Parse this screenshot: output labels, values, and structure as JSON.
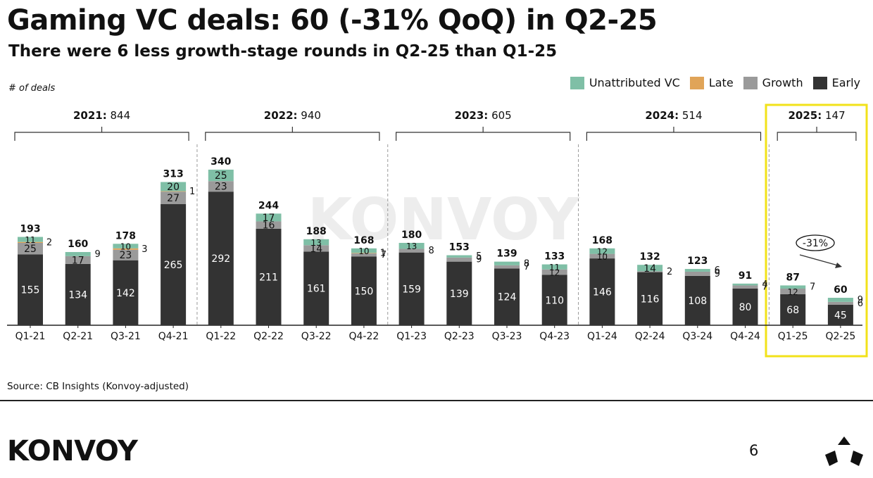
{
  "title": "Gaming VC deals: 60 (-31% QoQ) in Q2-25",
  "subtitle": "There were 6 less growth-stage rounds in Q2-25 than Q1-25",
  "y_unit_label": "# of deals",
  "source": "Source: CB Insights (Konvoy-adjusted)",
  "brand": "KONVOY",
  "watermark": "KONVOY",
  "page_number": "6",
  "colors": {
    "Early": "#333333",
    "Growth": "#9a9a9a",
    "Late": "#e0a458",
    "Unattributed VC": "#7fbfa6",
    "highlight": "#f2e21a"
  },
  "legend": [
    "Unattributed VC",
    "Late",
    "Growth",
    "Early"
  ],
  "chart_data": {
    "type": "bar",
    "stacked": true,
    "categories": [
      "Q1-21",
      "Q2-21",
      "Q3-21",
      "Q4-21",
      "Q1-22",
      "Q2-22",
      "Q3-22",
      "Q4-22",
      "Q1-23",
      "Q2-23",
      "Q3-23",
      "Q4-23",
      "Q1-24",
      "Q2-24",
      "Q3-24",
      "Q4-24",
      "Q1-25",
      "Q2-25"
    ],
    "series": [
      {
        "name": "Early",
        "values": [
          155,
          134,
          142,
          265,
          292,
          211,
          161,
          150,
          159,
          139,
          124,
          110,
          146,
          116,
          108,
          80,
          68,
          45
        ]
      },
      {
        "name": "Growth",
        "values": [
          25,
          17,
          23,
          27,
          23,
          16,
          14,
          7,
          8,
          9,
          7,
          12,
          10,
          2,
          9,
          7,
          12,
          6
        ]
      },
      {
        "name": "Late",
        "values": [
          2,
          0,
          3,
          1,
          0,
          0,
          0,
          1,
          0,
          0,
          0,
          0,
          0,
          0,
          0,
          0,
          0,
          0
        ]
      },
      {
        "name": "Unattributed VC",
        "values": [
          11,
          9,
          10,
          20,
          25,
          17,
          13,
          10,
          13,
          5,
          8,
          11,
          12,
          14,
          6,
          4,
          7,
          9
        ]
      }
    ],
    "totals": [
      193,
      160,
      178,
      313,
      340,
      244,
      188,
      168,
      180,
      153,
      139,
      133,
      168,
      132,
      123,
      91,
      87,
      60
    ],
    "groups": [
      {
        "year": "2021",
        "total": "844"
      },
      {
        "year": "2022",
        "total": "940"
      },
      {
        "year": "2023",
        "total": "605"
      },
      {
        "year": "2024",
        "total": "514"
      },
      {
        "year": "2025",
        "total": "147"
      }
    ],
    "annotation": "-31%",
    "ylim": [
      0,
      360
    ]
  }
}
